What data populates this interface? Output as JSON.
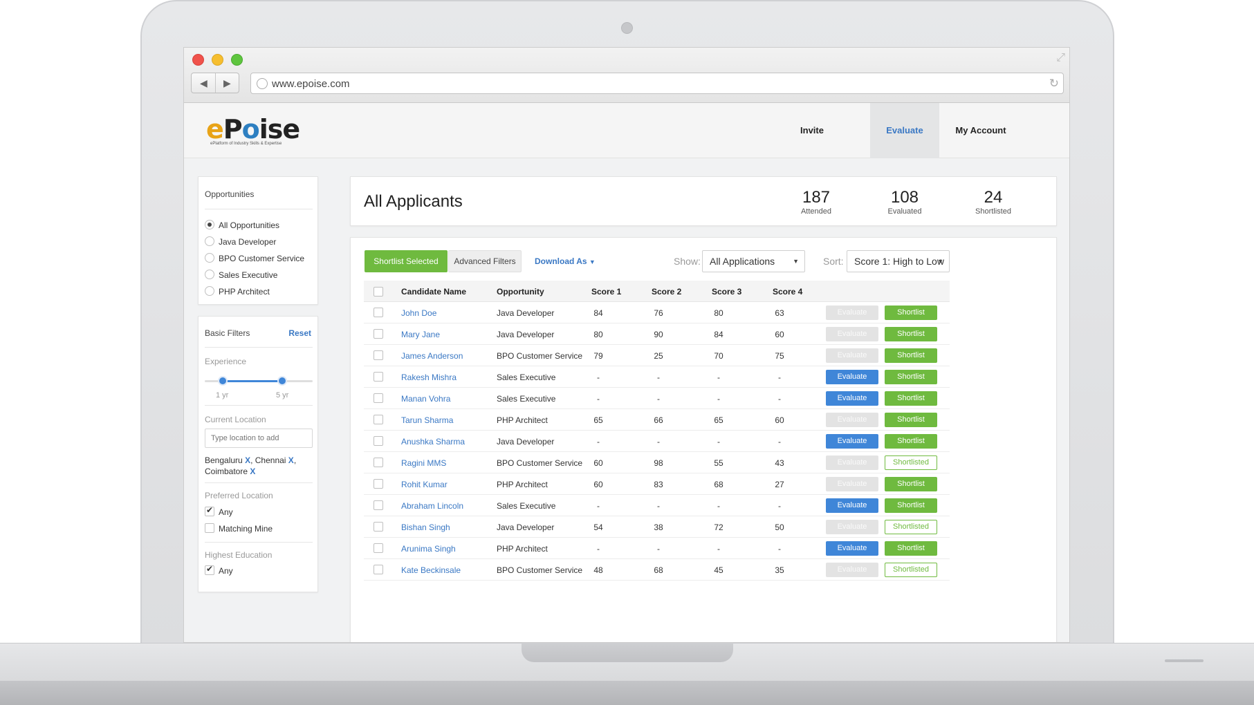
{
  "browser": {
    "url": "www.epoise.com"
  },
  "logo": {
    "text_e": "e",
    "text_p": "P",
    "text_o": "o",
    "text_rest": "ise",
    "tagline": "ePlatform of Industry Skills & Expertise"
  },
  "nav": {
    "invite": "Invite",
    "evaluate": "Evaluate",
    "account": "My Account",
    "active": "Evaluate"
  },
  "sidebar": {
    "opportunities_title": "Opportunities",
    "opportunities": [
      {
        "label": "All Opportunities",
        "selected": true
      },
      {
        "label": "Java Developer",
        "selected": false
      },
      {
        "label": "BPO Customer Service",
        "selected": false
      },
      {
        "label": "Sales Executive",
        "selected": false
      },
      {
        "label": "PHP Architect",
        "selected": false
      }
    ],
    "basic_filters_title": "Basic Filters",
    "reset": "Reset",
    "experience": {
      "label": "Experience",
      "min_label": "1 yr",
      "max_label": "5 yr",
      "min": 1,
      "max": 5
    },
    "current_location": {
      "label": "Current Location",
      "placeholder": "Type location to add",
      "tags_line1": "Bengaluru",
      "tags_line1b": "Chennai",
      "tags_line2": "Coimbatore",
      "remove": "X"
    },
    "preferred_location": {
      "label": "Preferred Location",
      "options": [
        {
          "label": "Any",
          "checked": true
        },
        {
          "label": "Matching Mine",
          "checked": false
        }
      ]
    },
    "highest_education": {
      "label": "Highest Education",
      "options": [
        {
          "label": "Any",
          "checked": true
        }
      ]
    }
  },
  "summary": {
    "title": "All Applicants",
    "stats": [
      {
        "value": "187",
        "label": "Attended"
      },
      {
        "value": "108",
        "label": "Evaluated"
      },
      {
        "value": "24",
        "label": "Shortlisted"
      }
    ]
  },
  "toolbar": {
    "shortlist_selected": "Shortlist Selected",
    "advanced_filters": "Advanced Filters",
    "download_as": "Download As",
    "show_label": "Show:",
    "show_value": "All Applications",
    "sort_label": "Sort:",
    "sort_value": "Score 1: High to Low"
  },
  "table": {
    "headers": [
      "Candidate Name",
      "Opportunity",
      "Score 1",
      "Score 2",
      "Score 3",
      "Score 4"
    ],
    "evaluate_label": "Evaluate",
    "shortlist_label": "Shortlist",
    "shortlisted_label": "Shortlisted",
    "rows": [
      {
        "name": "John Doe",
        "opportunity": "Java Developer",
        "s1": "84",
        "s2": "76",
        "s3": "80",
        "s4": "63",
        "evaluate": false,
        "shortlisted": false
      },
      {
        "name": "Mary Jane",
        "opportunity": "Java Developer",
        "s1": "80",
        "s2": "90",
        "s3": "84",
        "s4": "60",
        "evaluate": false,
        "shortlisted": false
      },
      {
        "name": "James Anderson",
        "opportunity": "BPO Customer Service",
        "s1": "79",
        "s2": "25",
        "s3": "70",
        "s4": "75",
        "evaluate": false,
        "shortlisted": false
      },
      {
        "name": "Rakesh Mishra",
        "opportunity": "Sales Executive",
        "s1": "-",
        "s2": "-",
        "s3": "-",
        "s4": "-",
        "evaluate": true,
        "shortlisted": false
      },
      {
        "name": "Manan Vohra",
        "opportunity": "Sales Executive",
        "s1": "-",
        "s2": "-",
        "s3": "-",
        "s4": "-",
        "evaluate": true,
        "shortlisted": false
      },
      {
        "name": "Tarun Sharma",
        "opportunity": "PHP Architect",
        "s1": "65",
        "s2": "66",
        "s3": "65",
        "s4": "60",
        "evaluate": false,
        "shortlisted": false
      },
      {
        "name": "Anushka Sharma",
        "opportunity": "Java Developer",
        "s1": "-",
        "s2": "-",
        "s3": "-",
        "s4": "-",
        "evaluate": true,
        "shortlisted": false
      },
      {
        "name": "Ragini MMS",
        "opportunity": "BPO Customer Service",
        "s1": "60",
        "s2": "98",
        "s3": "55",
        "s4": "43",
        "evaluate": false,
        "shortlisted": true
      },
      {
        "name": "Rohit Kumar",
        "opportunity": "PHP Architect",
        "s1": "60",
        "s2": "83",
        "s3": "68",
        "s4": "27",
        "evaluate": false,
        "shortlisted": false
      },
      {
        "name": "Abraham Lincoln",
        "opportunity": "Sales Executive",
        "s1": "-",
        "s2": "-",
        "s3": "-",
        "s4": "-",
        "evaluate": true,
        "shortlisted": false
      },
      {
        "name": "Bishan Singh",
        "opportunity": "Java Developer",
        "s1": "54",
        "s2": "38",
        "s3": "72",
        "s4": "50",
        "evaluate": false,
        "shortlisted": true
      },
      {
        "name": "Arunima Singh",
        "opportunity": "PHP Architect",
        "s1": "-",
        "s2": "-",
        "s3": "-",
        "s4": "-",
        "evaluate": true,
        "shortlisted": false
      },
      {
        "name": "Kate Beckinsale",
        "opportunity": "BPO Customer Service",
        "s1": "48",
        "s2": "68",
        "s3": "45",
        "s4": "35",
        "evaluate": false,
        "shortlisted": true
      }
    ]
  },
  "colors": {
    "accent_blue": "#3a78c4",
    "green": "#6fba3f",
    "evaluate_blue": "#3f86d8"
  }
}
